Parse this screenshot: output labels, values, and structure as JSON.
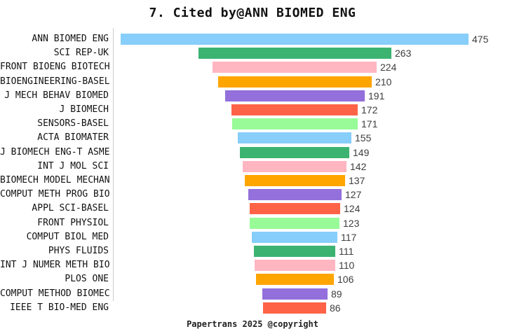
{
  "title": "7. Cited by@ANN BIOMED ENG",
  "footer": "Papertrans 2025 @copyright",
  "palette": [
    "#87CEFA",
    "#3CB371",
    "#FFB6C1",
    "#FFA500",
    "#9370DB",
    "#FF6347",
    "#98FB98"
  ],
  "axis_line_color": "#cccccc",
  "chart_data": {
    "type": "bar",
    "orientation": "horizontal-centered-funnel",
    "title": "7. Cited by@ANN BIOMED ENG",
    "xlabel": "",
    "ylabel": "",
    "grid": false,
    "legend": false,
    "value_labels": "right-of-bar",
    "categories": [
      "ANN BIOMED ENG",
      "SCI REP-UK",
      "FRONT BIOENG BIOTECH",
      "BIOENGINEERING-BASEL",
      "J MECH BEHAV BIOMED",
      "J BIOMECH",
      "SENSORS-BASEL",
      "ACTA BIOMATER",
      "J BIOMECH ENG-T ASME",
      "INT J MOL SCI",
      "BIOMECH MODEL MECHAN",
      "COMPUT METH PROG BIO",
      "APPL SCI-BASEL",
      "FRONT PHYSIOL",
      "COMPUT BIOL MED",
      "PHYS FLUIDS",
      "INT J NUMER METH BIO",
      "PLOS ONE",
      "COMPUT METHOD BIOMEC",
      "IEEE T BIO-MED ENG"
    ],
    "values": [
      475,
      263,
      224,
      210,
      191,
      172,
      171,
      155,
      149,
      142,
      137,
      127,
      124,
      123,
      117,
      111,
      110,
      106,
      89,
      86
    ],
    "bar_colors": [
      "#87CEFA",
      "#3CB371",
      "#FFB6C1",
      "#FFA500",
      "#9370DB",
      "#FF6347",
      "#98FB98",
      "#87CEFA",
      "#3CB371",
      "#FFB6C1",
      "#FFA500",
      "#9370DB",
      "#FF6347",
      "#98FB98",
      "#87CEFA",
      "#3CB371",
      "#FFB6C1",
      "#FFA500",
      "#9370DB",
      "#FF6347"
    ]
  }
}
